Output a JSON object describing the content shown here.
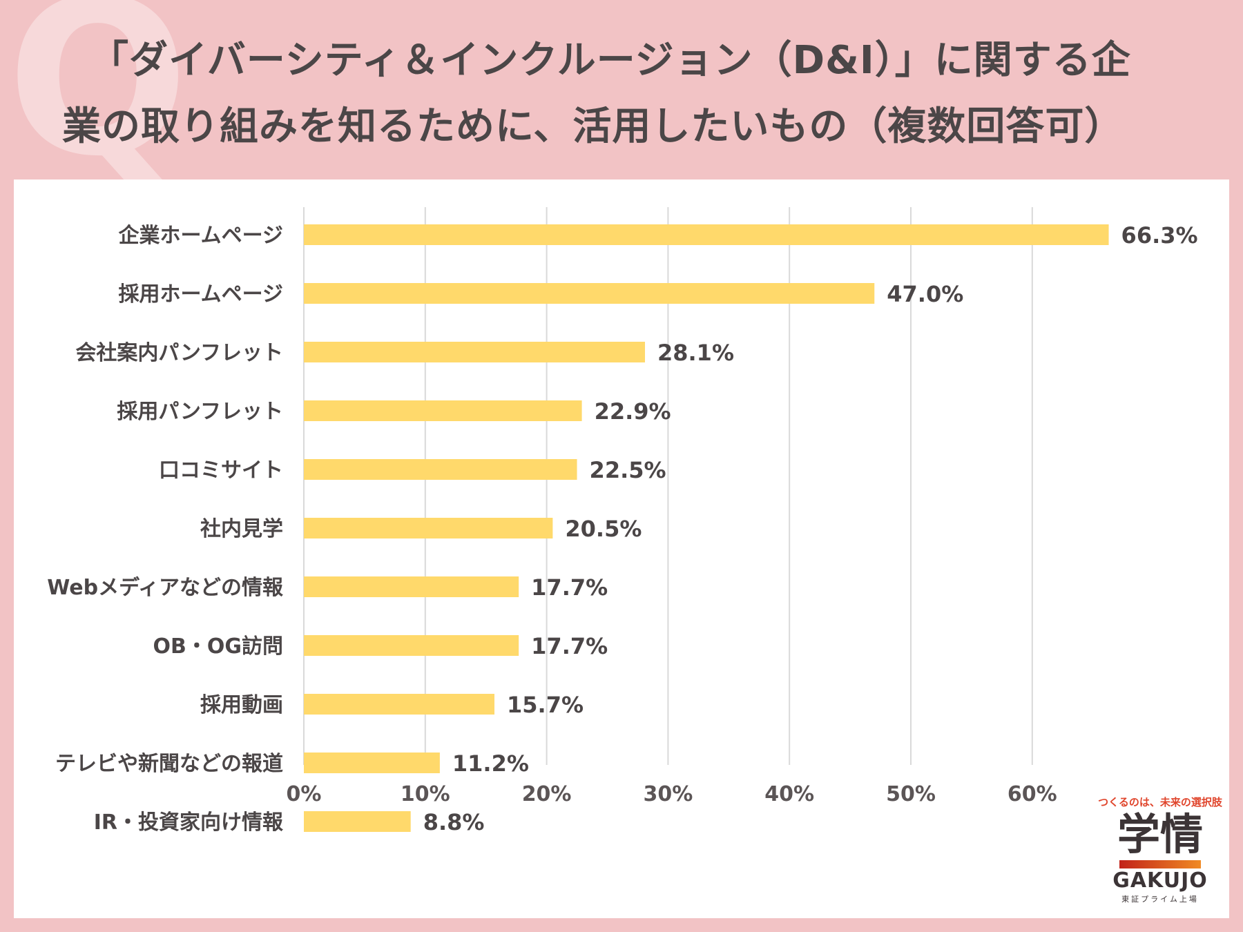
{
  "header": {
    "q_mark": "Q",
    "title_line1": "「ダイバーシティ＆インクルージョン（D&I）」に関する企",
    "title_line2": "業の取り組みを知るために、活用したいもの（複数回答可）"
  },
  "chart_data": {
    "type": "bar",
    "orientation": "horizontal",
    "title": "「ダイバーシティ＆インクルージョン（D&I）」に関する企業の取り組みを知るために、活用したいもの（複数回答可）",
    "categories": [
      "企業ホームページ",
      "採用ホームページ",
      "会社案内パンフレット",
      "採用パンフレット",
      "口コミサイト",
      "社内見学",
      "Webメディアなどの情報",
      "OB・OG訪問",
      "採用動画",
      "テレビや新聞などの報道",
      "IR・投資家向け情報"
    ],
    "values": [
      66.3,
      47.0,
      28.1,
      22.9,
      22.5,
      20.5,
      17.7,
      17.7,
      15.7,
      11.2,
      8.8
    ],
    "value_labels": [
      "66.3%",
      "47.0%",
      "28.1%",
      "22.9%",
      "22.5%",
      "20.5%",
      "17.7%",
      "17.7%",
      "15.7%",
      "11.2%",
      "8.8%"
    ],
    "x_ticks": [
      0,
      10,
      20,
      30,
      40,
      50,
      60
    ],
    "x_tick_labels": [
      "0%",
      "10%",
      "20%",
      "30%",
      "40%",
      "50%",
      "60%"
    ],
    "xlim": [
      0,
      70
    ],
    "xlabel": "",
    "ylabel": "",
    "grid": true,
    "bar_color": "#ffd96b"
  },
  "logo": {
    "tagline": "つくるのは、未来の選択肢",
    "kanji": "学情",
    "english": "GAKUJO",
    "subtext": "東証プライム上場"
  },
  "colors": {
    "background": "#f2c3c5",
    "title_text": "#4b4647",
    "bar": "#ffd96b",
    "grid": "#d9d9d9"
  }
}
